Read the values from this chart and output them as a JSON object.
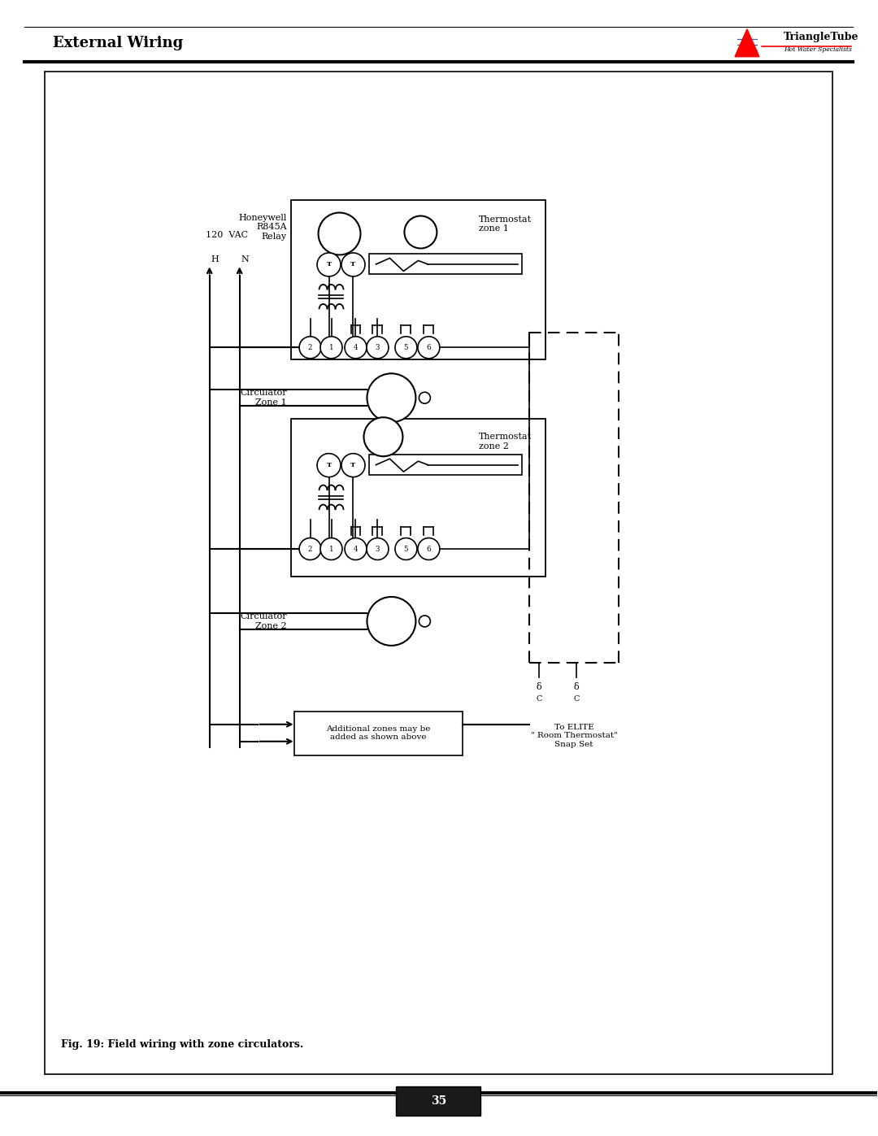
{
  "title": "External Wiring",
  "subtitle": "Fig. 19: Field wiring with zone circulators.",
  "page_number": "35",
  "background_color": "#ffffff",
  "logo_text": "TriangleTube",
  "logo_subtext": "Hot Water Specialists",
  "label_120vac": "120  VAC",
  "label_H": "H",
  "label_N": "N",
  "label_honeywell": "Honeywell\nR845A\nRelay",
  "label_thermostat1": "Thermostat\nzone 1",
  "label_thermostat2": "Thermostat\nzone 2",
  "label_circ1": "Circulator\nZone 1",
  "label_circ2": "Circulator\nZone 2",
  "label_additional": "Additional zones may be\nadded as shown above",
  "label_toelite": "To ELITE\n\" Room Thermostat\"\nSnap Set",
  "terminal_labels": [
    "2",
    "1",
    "4",
    "3",
    "5",
    "6"
  ]
}
